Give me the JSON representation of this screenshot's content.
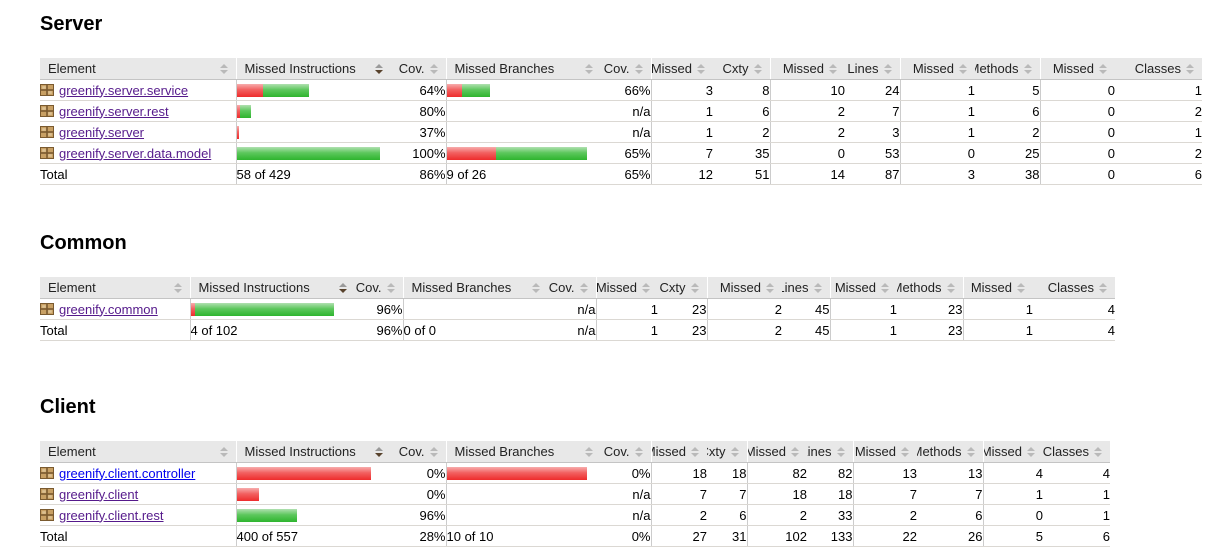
{
  "colors": {
    "link_visited": "#551A8B",
    "link_unvisited": "#0000EE",
    "bar_missed_red": "#ee2c2c",
    "bar_covered_green": "#2eb42e",
    "header_bg": "#e8e8e8"
  },
  "columns": [
    {
      "label": "Element",
      "sorted": false
    },
    {
      "label": "Missed Instructions",
      "sorted": true
    },
    {
      "label": "Cov.",
      "sorted": false
    },
    {
      "label": "Missed Branches",
      "sorted": false
    },
    {
      "label": "Cov.",
      "sorted": false
    },
    {
      "label": "Missed",
      "sorted": false
    },
    {
      "label": "Cxty",
      "sorted": false
    },
    {
      "label": "Missed",
      "sorted": false
    },
    {
      "label": "Lines",
      "sorted": false
    },
    {
      "label": "Missed",
      "sorted": false
    },
    {
      "label": "Methods",
      "sorted": false
    },
    {
      "label": "Missed",
      "sorted": false
    },
    {
      "label": "Classes",
      "sorted": false
    }
  ],
  "sections": [
    {
      "title": "Server",
      "rows": [
        {
          "name": "greenify.server.service",
          "visited": true,
          "instr_bar": {
            "red": 26,
            "green": 46
          },
          "instr_cov": "64%",
          "branch_bar": {
            "red": 15,
            "green": 28
          },
          "branch_cov": "66%",
          "cells": [
            "3",
            "8",
            "10",
            "24",
            "1",
            "5",
            "0",
            "1"
          ]
        },
        {
          "name": "greenify.server.rest",
          "visited": true,
          "instr_bar": {
            "red": 3,
            "green": 11
          },
          "instr_cov": "80%",
          "branch_bar": null,
          "branch_cov": "n/a",
          "cells": [
            "1",
            "6",
            "2",
            "7",
            "1",
            "6",
            "0",
            "2"
          ]
        },
        {
          "name": "greenify.server",
          "visited": true,
          "instr_bar": {
            "red": 2,
            "green": 0
          },
          "instr_cov": "37%",
          "branch_bar": null,
          "branch_cov": "n/a",
          "cells": [
            "1",
            "2",
            "2",
            "3",
            "1",
            "2",
            "0",
            "1"
          ]
        },
        {
          "name": "greenify.server.data.model",
          "visited": true,
          "instr_bar": {
            "red": 0,
            "green": 143
          },
          "instr_cov": "100%",
          "branch_bar": {
            "red": 49,
            "green": 91
          },
          "branch_cov": "65%",
          "cells": [
            "7",
            "35",
            "0",
            "53",
            "0",
            "25",
            "0",
            "2"
          ]
        }
      ],
      "total": {
        "label": "Total",
        "instr": "58 of 429",
        "instr_cov": "86%",
        "branch": "9 of 26",
        "branch_cov": "65%",
        "cells": [
          "12",
          "51",
          "14",
          "87",
          "3",
          "38",
          "0",
          "6"
        ]
      }
    },
    {
      "title": "Common",
      "rows": [
        {
          "name": "greenify.common",
          "visited": true,
          "instr_bar": {
            "red": 4,
            "green": 139
          },
          "instr_cov": "96%",
          "branch_bar": null,
          "branch_cov": "n/a",
          "cells": [
            "1",
            "23",
            "2",
            "45",
            "1",
            "23",
            "1",
            "4"
          ]
        }
      ],
      "total": {
        "label": "Total",
        "instr": "4 of 102",
        "instr_cov": "96%",
        "branch": "0 of 0",
        "branch_cov": "n/a",
        "cells": [
          "1",
          "23",
          "2",
          "45",
          "1",
          "23",
          "1",
          "4"
        ]
      }
    },
    {
      "title": "Client",
      "rows": [
        {
          "name": "greenify.client.controller",
          "visited": false,
          "instr_bar": {
            "red": 134,
            "green": 0
          },
          "instr_cov": "0%",
          "branch_bar": {
            "red": 140,
            "green": 0
          },
          "branch_cov": "0%",
          "cells": [
            "18",
            "18",
            "82",
            "82",
            "13",
            "13",
            "4",
            "4"
          ]
        },
        {
          "name": "greenify.client",
          "visited": true,
          "instr_bar": {
            "red": 22,
            "green": 0
          },
          "instr_cov": "0%",
          "branch_bar": null,
          "branch_cov": "n/a",
          "cells": [
            "7",
            "7",
            "18",
            "18",
            "7",
            "7",
            "1",
            "1"
          ]
        },
        {
          "name": "greenify.client.rest",
          "visited": true,
          "instr_bar": {
            "red": 0,
            "green": 60
          },
          "instr_cov": "96%",
          "branch_bar": null,
          "branch_cov": "n/a",
          "cells": [
            "2",
            "6",
            "2",
            "33",
            "2",
            "6",
            "0",
            "1"
          ]
        }
      ],
      "total": {
        "label": "Total",
        "instr": "400 of 557",
        "instr_cov": "28%",
        "branch": "10 of 10",
        "branch_cov": "0%",
        "cells": [
          "27",
          "31",
          "102",
          "133",
          "22",
          "26",
          "5",
          "6"
        ]
      }
    }
  ]
}
